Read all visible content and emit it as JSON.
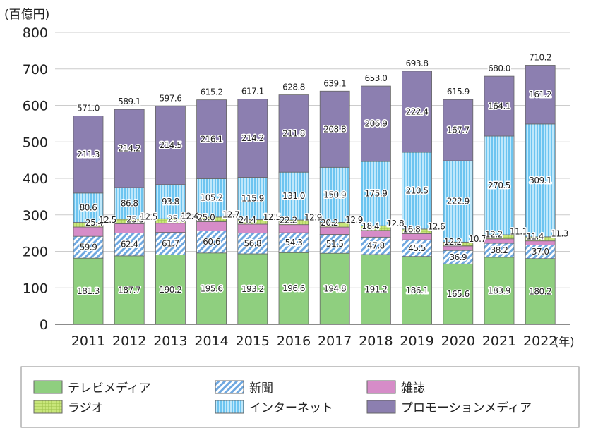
{
  "chart_data": {
    "type": "bar",
    "stacked": true,
    "unit_label": "(百億円)",
    "x_suffix": "(年)",
    "categories": [
      "2011",
      "2012",
      "2013",
      "2014",
      "2015",
      "2016",
      "2017",
      "2018",
      "2019",
      "2020",
      "2021",
      "2022"
    ],
    "ylim": [
      0,
      800
    ],
    "yticks": [
      0,
      100,
      200,
      300,
      400,
      500,
      600,
      700,
      800
    ],
    "grid": true,
    "legend_position": "bottom",
    "series": [
      {
        "name": "テレビメディア",
        "color": "#8fcf7f",
        "values": [
          181.3,
          187.7,
          190.2,
          195.6,
          193.2,
          196.6,
          194.8,
          191.2,
          186.1,
          165.6,
          183.9,
          180.2
        ]
      },
      {
        "name": "新聞",
        "color": "#6fa8e0",
        "pattern": "diagonal",
        "values": [
          59.9,
          62.4,
          61.7,
          60.6,
          56.8,
          54.3,
          51.5,
          47.8,
          45.5,
          36.9,
          38.2,
          37.0
        ]
      },
      {
        "name": "雑誌",
        "color": "#d68cc8",
        "values": [
          25.4,
          25.5,
          25.0,
          25.0,
          24.4,
          22.2,
          20.2,
          18.4,
          16.8,
          12.2,
          12.2,
          11.4
        ]
      },
      {
        "name": "ラジオ",
        "color": "#c8e67a",
        "pattern": "grid",
        "values": [
          12.5,
          12.5,
          12.4,
          12.7,
          12.5,
          12.9,
          12.9,
          12.8,
          12.6,
          10.7,
          11.1,
          11.3
        ]
      },
      {
        "name": "インターネット",
        "color": "#8fd3f5",
        "pattern": "vertical",
        "values": [
          80.6,
          86.8,
          93.8,
          105.2,
          115.9,
          131.0,
          150.9,
          175.9,
          210.5,
          222.9,
          270.5,
          309.1
        ]
      },
      {
        "name": "プロモーションメディア",
        "color": "#8c7fb0",
        "values": [
          211.3,
          214.2,
          214.5,
          216.1,
          214.2,
          211.8,
          208.8,
          206.9,
          222.4,
          167.7,
          164.1,
          161.2
        ]
      }
    ],
    "totals": [
      "571.0",
      "589.1",
      "597.6",
      "615.2",
      "617.1",
      "628.8",
      "639.1",
      "653.0",
      "693.8",
      "615.9",
      "680.0",
      "710.2"
    ]
  }
}
